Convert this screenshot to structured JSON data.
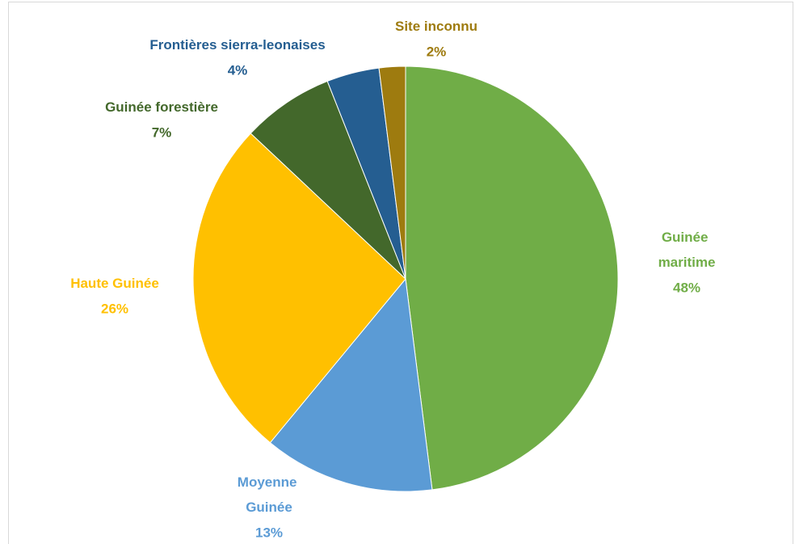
{
  "chart_data": {
    "type": "pie",
    "categories": [
      "Guinée maritime",
      "Moyenne Guinée",
      "Haute Guinée",
      "Guinée forestière",
      "Frontières sierra-leonaises",
      "Site inconnu"
    ],
    "values": [
      48,
      13,
      26,
      7,
      4,
      2
    ],
    "value_labels": [
      "48%",
      "13%",
      "26%",
      "7%",
      "4%",
      "2%"
    ],
    "colors": [
      "#70ad47",
      "#5b9bd5",
      "#ffc000",
      "#43682b",
      "#255e91",
      "#9e7b0f"
    ]
  }
}
